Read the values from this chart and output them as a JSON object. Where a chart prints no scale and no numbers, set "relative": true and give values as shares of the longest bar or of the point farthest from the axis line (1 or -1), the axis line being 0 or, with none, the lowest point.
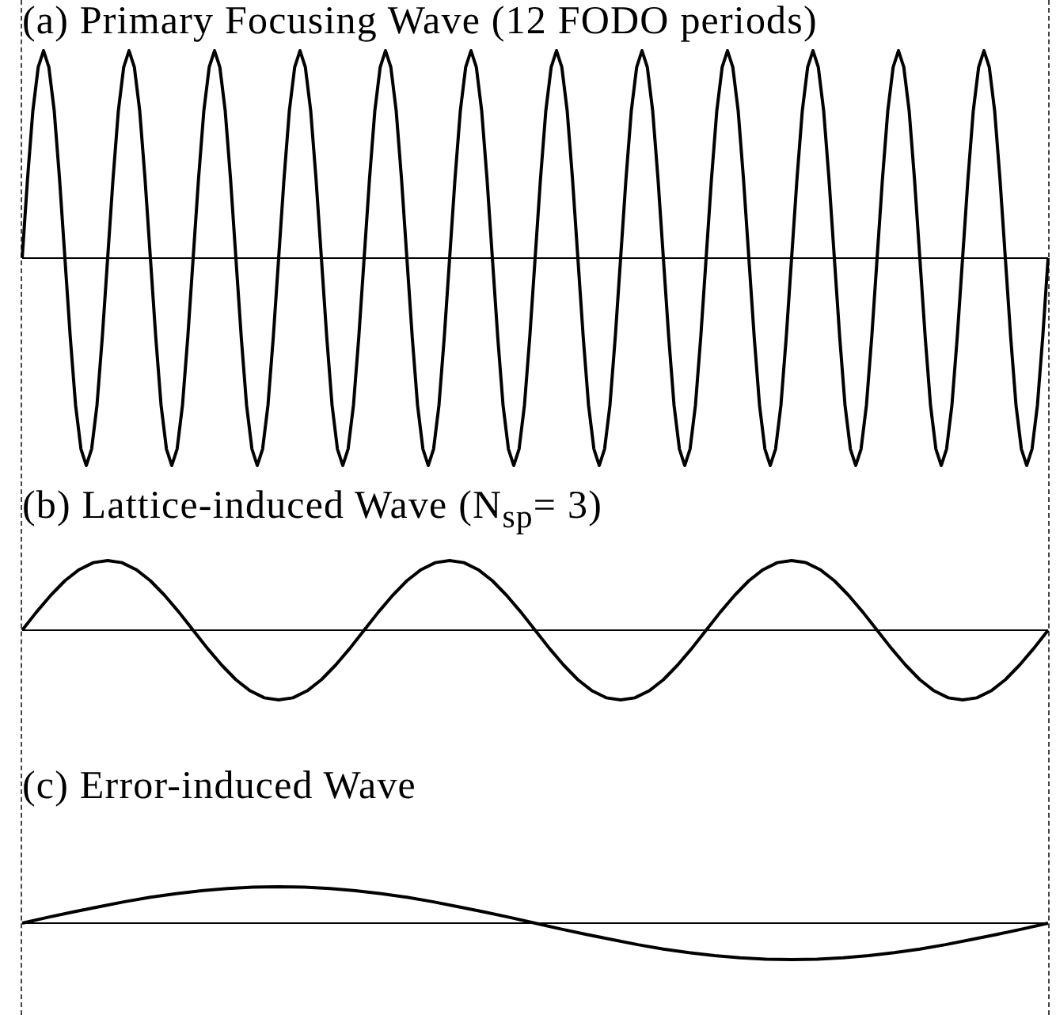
{
  "chart_data": [
    {
      "type": "line",
      "title": "(a)  Primary Focusing Wave (12 FODO periods)",
      "relative": true,
      "tick_labels": false,
      "marker": "none",
      "categories": [
        null,
        null,
        null,
        null,
        null,
        null,
        null,
        null,
        null,
        null,
        null,
        null,
        null,
        null,
        null,
        null,
        null,
        null,
        null,
        null,
        null,
        null,
        null,
        null,
        null,
        null,
        null,
        null,
        null,
        null,
        null,
        null,
        null,
        null,
        null,
        null,
        null,
        null,
        null,
        null,
        null,
        null,
        null,
        null,
        null,
        null,
        null,
        null,
        null,
        null,
        null,
        null,
        null,
        null,
        null,
        null,
        null,
        null,
        null,
        null,
        null,
        null,
        null,
        null,
        null,
        null,
        null,
        null,
        null,
        null,
        null,
        null,
        null,
        null,
        null,
        null,
        null,
        null,
        null,
        null,
        null,
        null,
        null,
        null,
        null,
        null,
        null,
        null,
        null,
        null,
        null,
        null,
        null,
        null,
        null,
        null,
        null,
        null,
        null,
        null,
        null,
        null,
        null,
        null,
        null,
        null,
        null,
        null,
        null,
        null,
        null,
        null,
        null,
        null,
        null,
        null,
        null,
        null,
        null,
        null,
        null,
        null,
        null,
        null,
        null,
        null,
        null,
        null,
        null,
        null,
        null,
        null,
        null,
        null,
        null,
        null,
        null,
        null,
        null,
        null,
        null,
        null,
        null,
        null,
        null,
        null,
        null,
        null,
        null,
        null,
        null,
        null,
        null,
        null,
        null,
        null,
        null,
        null,
        null,
        null,
        null,
        null,
        null,
        null,
        null,
        null,
        null,
        null,
        null,
        null,
        null,
        null,
        null,
        null,
        null,
        null,
        null,
        null,
        null,
        null,
        null,
        null,
        null,
        null,
        null,
        null,
        null,
        null,
        null,
        null,
        null,
        null,
        null
      ],
      "series": [
        {
          "color": "#000000",
          "values": [
            0,
            0.38,
            0.71,
            0.92,
            1,
            0.92,
            0.71,
            0.38,
            0,
            -0.38,
            -0.71,
            -0.92,
            -1,
            -0.92,
            -0.71,
            -0.38,
            0,
            0.38,
            0.71,
            0.92,
            1,
            0.92,
            0.71,
            0.38,
            0,
            -0.38,
            -0.71,
            -0.92,
            -1,
            -0.92,
            -0.71,
            -0.38,
            0,
            0.38,
            0.71,
            0.92,
            1,
            0.92,
            0.71,
            0.38,
            0,
            -0.38,
            -0.71,
            -0.92,
            -1,
            -0.92,
            -0.71,
            -0.38,
            0,
            0.38,
            0.71,
            0.92,
            1,
            0.92,
            0.71,
            0.38,
            0,
            -0.38,
            -0.71,
            -0.92,
            -1,
            -0.92,
            -0.71,
            -0.38,
            0,
            0.38,
            0.71,
            0.92,
            1,
            0.92,
            0.71,
            0.38,
            0,
            -0.38,
            -0.71,
            -0.92,
            -1,
            -0.92,
            -0.71,
            -0.38,
            0,
            0.38,
            0.71,
            0.92,
            1,
            0.92,
            0.71,
            0.38,
            0,
            -0.38,
            -0.71,
            -0.92,
            -1,
            -0.92,
            -0.71,
            -0.38,
            0,
            0.38,
            0.71,
            0.92,
            1,
            0.92,
            0.71,
            0.38,
            0,
            -0.38,
            -0.71,
            -0.92,
            -1,
            -0.92,
            -0.71,
            -0.38,
            0,
            0.38,
            0.71,
            0.92,
            1,
            0.92,
            0.71,
            0.38,
            0,
            -0.38,
            -0.71,
            -0.92,
            -1,
            -0.92,
            -0.71,
            -0.38,
            0,
            0.38,
            0.71,
            0.92,
            1,
            0.92,
            0.71,
            0.38,
            0,
            -0.38,
            -0.71,
            -0.92,
            -1,
            -0.92,
            -0.71,
            -0.38,
            0,
            0.38,
            0.71,
            0.92,
            1,
            0.92,
            0.71,
            0.38,
            0,
            -0.38,
            -0.71,
            -0.92,
            -1,
            -0.92,
            -0.71,
            -0.38,
            0,
            0.38,
            0.71,
            0.92,
            1,
            0.92,
            0.71,
            0.38,
            0,
            -0.38,
            -0.71,
            -0.92,
            -1,
            -0.92,
            -0.71,
            -0.38,
            0,
            0.38,
            0.71,
            0.92,
            1,
            0.92,
            0.71,
            0.38,
            0,
            -0.38,
            -0.71,
            -0.92,
            -1,
            -0.92,
            -0.71,
            -0.38,
            0
          ]
        }
      ]
    },
    {
      "type": "line",
      "title": "(b)  Lattice-induced Wave (N$_{sp}$= 3)",
      "relative": true,
      "tick_labels": false,
      "marker": "none",
      "categories": [
        null,
        null,
        null,
        null,
        null,
        null,
        null,
        null,
        null,
        null,
        null,
        null,
        null,
        null,
        null,
        null,
        null,
        null,
        null,
        null,
        null,
        null,
        null,
        null,
        null,
        null,
        null,
        null,
        null,
        null,
        null,
        null,
        null,
        null,
        null,
        null,
        null,
        null,
        null,
        null,
        null,
        null,
        null,
        null,
        null,
        null,
        null,
        null,
        null,
        null,
        null,
        null,
        null,
        null,
        null,
        null,
        null,
        null,
        null,
        null,
        null,
        null,
        null,
        null,
        null,
        null,
        null,
        null,
        null,
        null,
        null,
        null,
        null
      ],
      "series": [
        {
          "color": "#000000",
          "values": [
            0,
            0.26,
            0.5,
            0.71,
            0.87,
            0.97,
            1,
            0.97,
            0.87,
            0.71,
            0.5,
            0.26,
            0,
            -0.26,
            -0.5,
            -0.71,
            -0.87,
            -0.97,
            -1,
            -0.97,
            -0.87,
            -0.71,
            -0.5,
            -0.26,
            0,
            0.26,
            0.5,
            0.71,
            0.87,
            0.97,
            1,
            0.97,
            0.87,
            0.71,
            0.5,
            0.26,
            0,
            -0.26,
            -0.5,
            -0.71,
            -0.87,
            -0.97,
            -1,
            -0.97,
            -0.87,
            -0.71,
            -0.5,
            -0.26,
            0,
            0.26,
            0.5,
            0.71,
            0.87,
            0.97,
            1,
            0.97,
            0.87,
            0.71,
            0.5,
            0.26,
            0,
            -0.26,
            -0.5,
            -0.71,
            -0.87,
            -0.97,
            -1,
            -0.97,
            -0.87,
            -0.71,
            -0.5,
            -0.26,
            0
          ]
        }
      ]
    },
    {
      "type": "line",
      "title": "(c)  Error-induced Wave",
      "relative": true,
      "tick_labels": false,
      "marker": "none",
      "categories": [
        null,
        null,
        null,
        null,
        null,
        null,
        null,
        null,
        null,
        null,
        null,
        null,
        null,
        null,
        null,
        null,
        null,
        null,
        null,
        null,
        null,
        null,
        null,
        null,
        null,
        null,
        null,
        null,
        null,
        null,
        null,
        null,
        null,
        null,
        null,
        null,
        null,
        null,
        null,
        null,
        null
      ],
      "series": [
        {
          "color": "#000000",
          "values": [
            0,
            0.16,
            0.31,
            0.45,
            0.59,
            0.71,
            0.81,
            0.89,
            0.95,
            0.99,
            1,
            0.99,
            0.95,
            0.89,
            0.81,
            0.71,
            0.59,
            0.45,
            0.31,
            0.16,
            0,
            -0.16,
            -0.31,
            -0.45,
            -0.59,
            -0.71,
            -0.81,
            -0.89,
            -0.95,
            -0.99,
            -1,
            -0.99,
            -0.95,
            -0.89,
            -0.81,
            -0.71,
            -0.59,
            -0.45,
            -0.31,
            -0.16,
            0
          ]
        }
      ]
    }
  ]
}
